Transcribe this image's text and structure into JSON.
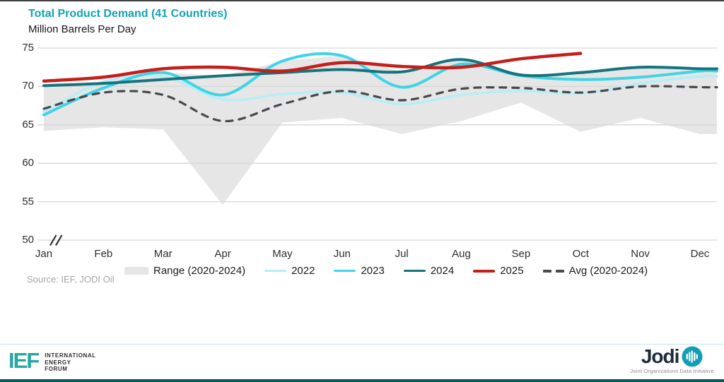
{
  "header": {
    "title": "Total Product Demand (41 Countries)",
    "subtitle": "Million Barrels Per Day"
  },
  "source_note": "Source: IEF, JODI Oil",
  "footer": {
    "ief": {
      "acronym": "IEF",
      "lines": [
        "INTERNATIONAL",
        "ENERGY",
        "FORUM"
      ]
    },
    "jodi": {
      "wordmark": "Jodi",
      "icon": "bar-chart-circle-icon",
      "tagline": "Joint Organizations Data Initiative"
    }
  },
  "colors": {
    "title_teal": "#14a3b2",
    "range_fill": "#e6e6e6",
    "y2022": "#b9edf6",
    "y2023": "#3fd4e6",
    "y2024": "#17737d",
    "y2025": "#c41f1a",
    "avg_dash": "#47494f",
    "gridline": "#d6d6d6",
    "source_text": "#a6a6a6",
    "footer_divider": "#c2e7ea",
    "footer_bar": "#0a5765",
    "top_border": "#3f3f3f",
    "ief_teal": "#28a7a0",
    "jodi_navy": "#1c2b3a",
    "jodi_circle_teal": "#149eb6"
  },
  "chart_data": {
    "type": "line",
    "title": "Total Product Demand (41 Countries)",
    "xlabel": "",
    "ylabel": "Million Barrels Per Day",
    "x": [
      "Jan",
      "Feb",
      "Mar",
      "Apr",
      "May",
      "Jun",
      "Jul",
      "Aug",
      "Sep",
      "Oct",
      "Nov",
      "Dec"
    ],
    "y_ticks": [
      75,
      70,
      65,
      60,
      55,
      50
    ],
    "ylim": [
      50,
      75
    ],
    "y_axis_break": true,
    "grid": "horizontal",
    "legend_position": "bottom",
    "series": [
      {
        "name": "Range (2020-2024)",
        "type": "band",
        "high": [
          70.1,
          70.6,
          71.8,
          71.4,
          73.3,
          74.0,
          71.9,
          73.5,
          71.5,
          71.8,
          72.5,
          72.3
        ],
        "low": [
          64.2,
          64.7,
          64.4,
          54.6,
          65.3,
          65.9,
          63.8,
          65.5,
          67.9,
          64.1,
          65.9,
          63.8
        ],
        "color": "#e6e6e6"
      },
      {
        "name": "2022",
        "type": "line",
        "values": [
          66.7,
          70.6,
          71.3,
          68.3,
          69.0,
          69.2,
          67.7,
          68.9,
          69.4,
          69.1,
          70.4,
          71.3
        ],
        "color": "#b9edf6",
        "width": 3.5
      },
      {
        "name": "2023",
        "type": "line",
        "values": [
          66.3,
          69.8,
          71.8,
          68.9,
          73.3,
          74.0,
          69.9,
          72.9,
          71.4,
          70.9,
          71.2,
          72.0
        ],
        "color": "#3fd4e6",
        "width": 4
      },
      {
        "name": "2024",
        "type": "line",
        "values": [
          70.1,
          70.4,
          70.9,
          71.4,
          71.8,
          72.2,
          71.9,
          73.5,
          71.5,
          71.8,
          72.5,
          72.3
        ],
        "color": "#17737d",
        "width": 4
      },
      {
        "name": "2025",
        "type": "line",
        "values": [
          70.7,
          71.2,
          72.3,
          72.5,
          72.0,
          73.1,
          72.6,
          72.5,
          73.6,
          74.3,
          null,
          null
        ],
        "color": "#c41f1a",
        "width": 4.5
      },
      {
        "name": "Avg (2020-2024)",
        "type": "line",
        "dashed": true,
        "values": [
          67.1,
          69.2,
          68.9,
          65.5,
          67.7,
          69.4,
          68.2,
          69.7,
          69.8,
          69.2,
          70.0,
          69.9
        ],
        "color": "#47494f",
        "width": 3.2
      }
    ]
  }
}
